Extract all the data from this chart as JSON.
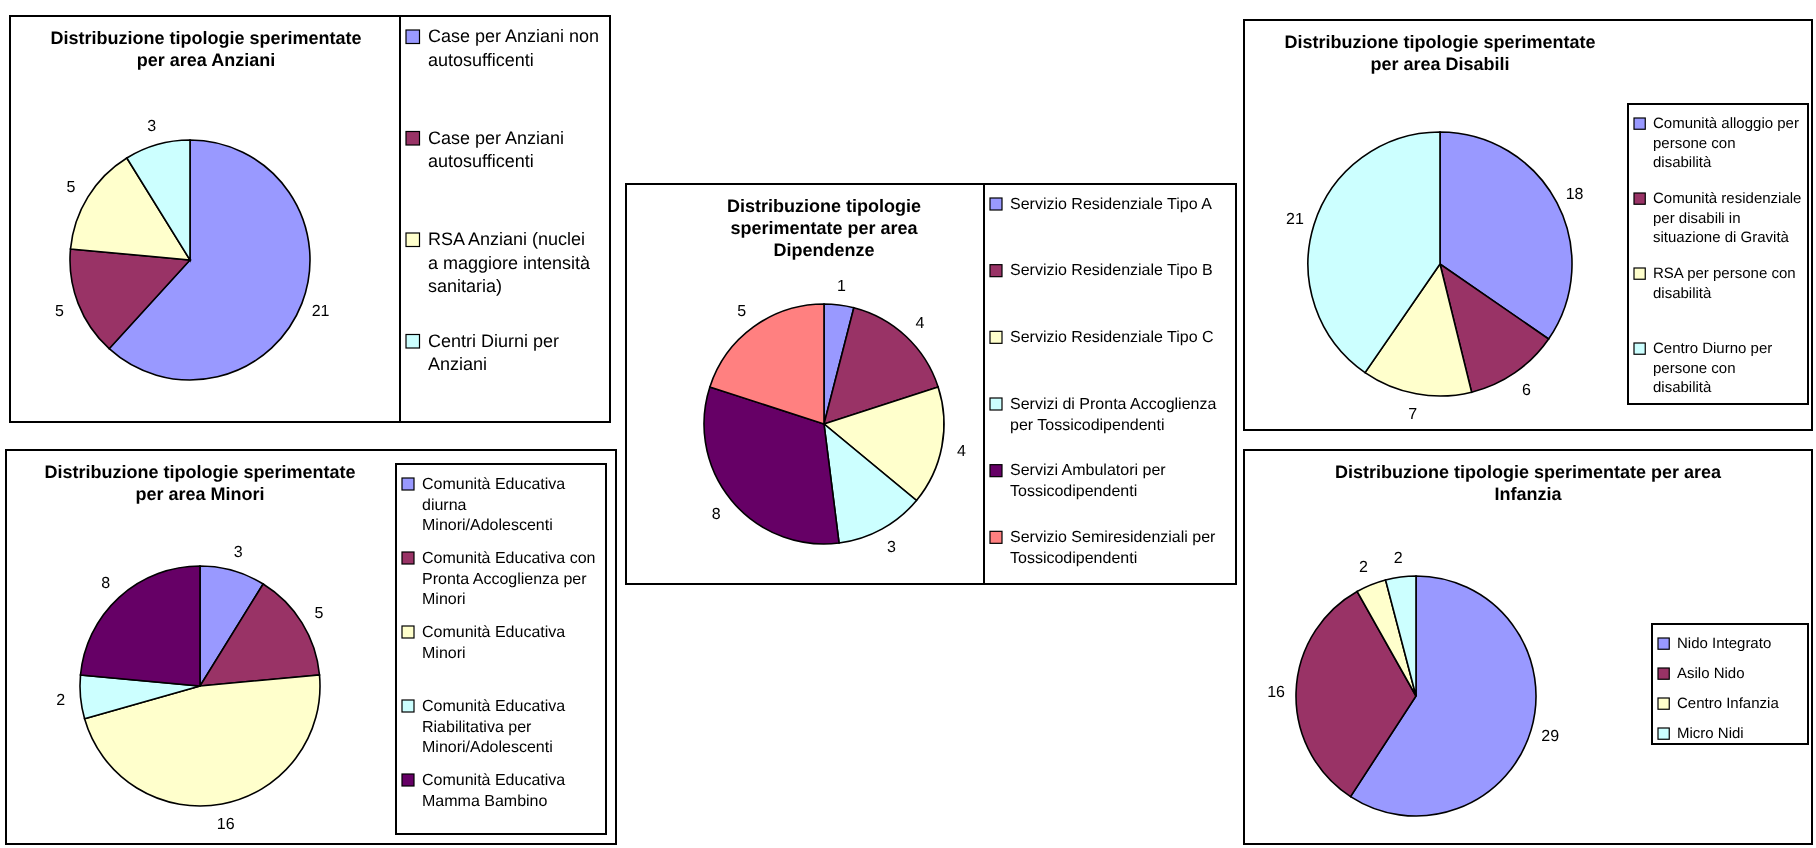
{
  "chart_data": [
    {
      "type": "pie",
      "title": "Distribuzione tipologie sperimentate per area Anziani",
      "categories": [
        "Case per Anziani non autosufficenti",
        "Case per Anziani autosufficenti",
        "RSA Anziani (nuclei a maggiore intensità sanitaria)",
        "Centri Diurni per Anziani"
      ],
      "values": [
        21,
        5,
        5,
        3
      ],
      "colors": [
        "#9999ff",
        "#993366",
        "#ffffcc",
        "#ccffff"
      ],
      "data_labels": true,
      "legend": "right"
    },
    {
      "type": "pie",
      "title": "Distribuzione tipologie sperimentate per area Minori",
      "categories": [
        "Comunità Educativa diurna Minori/Adolescenti",
        "Comunità Educativa con Pronta Accoglienza per Minori",
        "Comunità Educativa Minori",
        "Comunità Educativa Riabilitativa per Minori/Adolescenti",
        "Comunità Educativa Mamma Bambino"
      ],
      "values": [
        3,
        5,
        16,
        2,
        8
      ],
      "colors": [
        "#9999ff",
        "#993366",
        "#ffffcc",
        "#ccffff",
        "#660066"
      ],
      "data_labels": true,
      "legend": "right"
    },
    {
      "type": "pie",
      "title": "Distribuzione tipologie sperimentate per area Dipendenze",
      "categories": [
        "Servizio Residenziale Tipo A",
        "Servizio Residenziale Tipo B",
        "Servizio Residenziale Tipo C",
        "Servizi di Pronta Accoglienza per Tossicodipendenti",
        "Servizi Ambulatori per Tossicodipendenti",
        "Servizio Semiresidenziali per Tossicodipendenti"
      ],
      "values": [
        1,
        4,
        4,
        3,
        8,
        5
      ],
      "colors": [
        "#9999ff",
        "#993366",
        "#ffffcc",
        "#ccffff",
        "#660066",
        "#ff8080"
      ],
      "data_labels": true,
      "legend": "right"
    },
    {
      "type": "pie",
      "title": "Distribuzione tipologie sperimentate per area Disabili",
      "categories": [
        "Comunità alloggio per persone con disabilità",
        "Comunità residenziale per disabili in situazione di Gravità",
        "RSA per persone con disabilità",
        "Centro Diurno per persone con disabilità"
      ],
      "values": [
        18,
        6,
        7,
        21
      ],
      "colors": [
        "#9999ff",
        "#993366",
        "#ffffcc",
        "#ccffff"
      ],
      "data_labels": true,
      "legend": "right"
    },
    {
      "type": "pie",
      "title": "Distribuzione tipologie sperimentate per area Infanzia",
      "categories": [
        "Nido Integrato",
        "Asilo Nido",
        "Centro Infanzia",
        "Micro Nidi"
      ],
      "values": [
        29,
        16,
        2,
        2
      ],
      "colors": [
        "#9999ff",
        "#993366",
        "#ffffcc",
        "#ccffff"
      ],
      "data_labels": true,
      "legend": "right"
    }
  ]
}
